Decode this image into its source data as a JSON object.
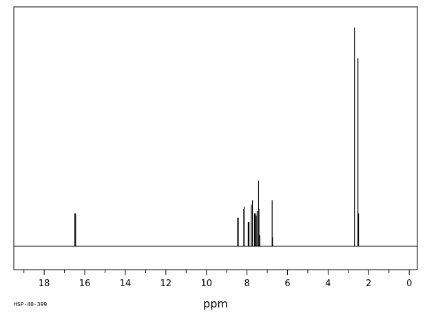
{
  "chart_data": {
    "type": "line",
    "title": "",
    "xlabel": "ppm",
    "ylabel": "",
    "code": "HSP-40-399",
    "xlim": [
      19.5,
      -0.4
    ],
    "x_reversed": true,
    "ylim": [
      -0.12,
      1.1
    ],
    "grid": false,
    "legend": "none",
    "x_ticks": [
      18,
      16,
      14,
      12,
      10,
      8,
      6,
      4,
      2,
      0
    ],
    "x_minor_step": 1,
    "peaks": [
      {
        "ppm": 16.49,
        "height": 0.15
      },
      {
        "ppm": 16.45,
        "height": 0.15
      },
      {
        "ppm": 8.46,
        "height": 0.13
      },
      {
        "ppm": 8.43,
        "height": 0.13
      },
      {
        "ppm": 8.16,
        "height": 0.17
      },
      {
        "ppm": 8.14,
        "height": 0.18
      },
      {
        "ppm": 7.94,
        "height": 0.11
      },
      {
        "ppm": 7.9,
        "height": 0.11
      },
      {
        "ppm": 7.79,
        "height": 0.19
      },
      {
        "ppm": 7.73,
        "height": 0.21
      },
      {
        "ppm": 7.63,
        "height": 0.15
      },
      {
        "ppm": 7.58,
        "height": 0.15
      },
      {
        "ppm": 7.55,
        "height": 0.14
      },
      {
        "ppm": 7.5,
        "height": 0.16
      },
      {
        "ppm": 7.43,
        "height": 0.3
      },
      {
        "ppm": 7.41,
        "height": 0.17
      },
      {
        "ppm": 7.37,
        "height": 0.05
      },
      {
        "ppm": 6.76,
        "height": 0.21
      },
      {
        "ppm": 6.74,
        "height": 0.04
      },
      {
        "ppm": 2.7,
        "height": 1.0
      },
      {
        "ppm": 2.53,
        "height": 0.86
      },
      {
        "ppm": 2.5,
        "height": 0.15
      }
    ]
  }
}
